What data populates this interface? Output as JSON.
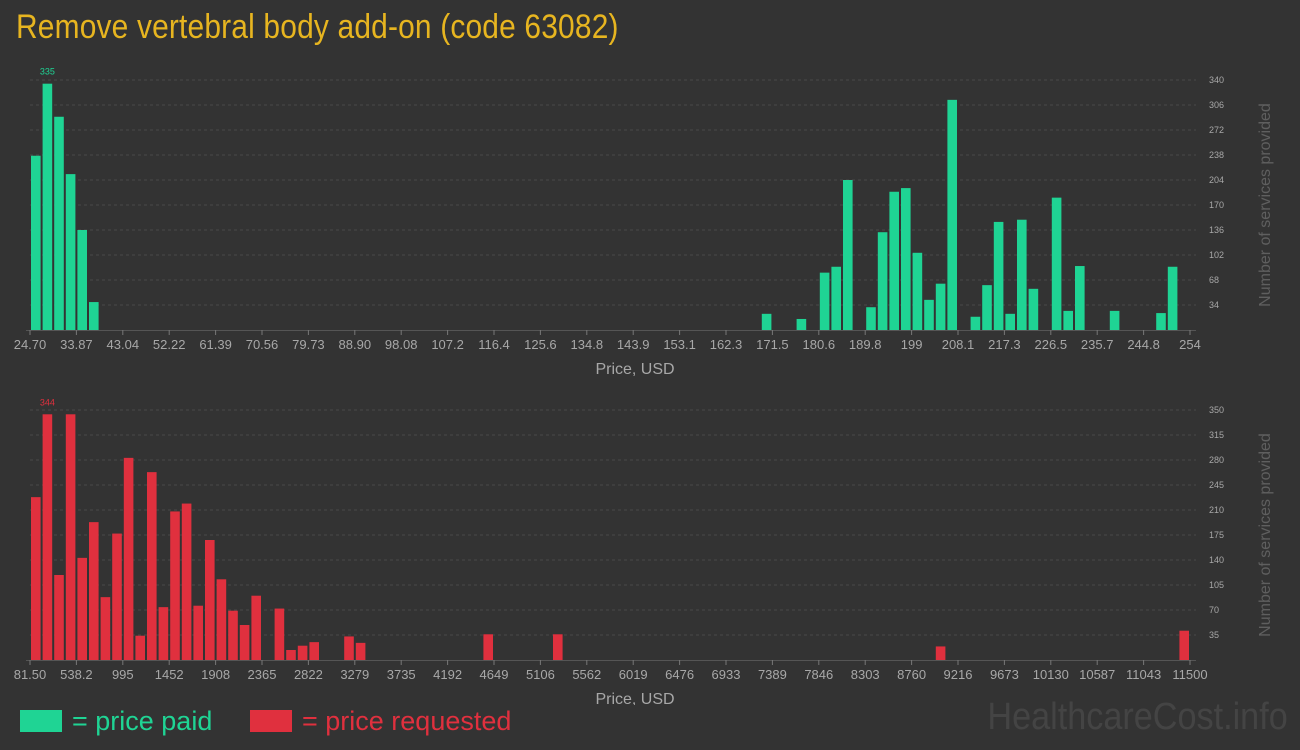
{
  "title": "Remove vertebral body add-on (code 63082)",
  "colors": {
    "background": "#333333",
    "paid": "#1fd494",
    "requested": "#e0303e",
    "title": "#e7b520",
    "grid": "#4a4a4a",
    "text": "#a8a8a8"
  },
  "legend": {
    "paid": "= price paid",
    "requested": "= price requested"
  },
  "watermark": "HealthcareCost.info",
  "chart_data": [
    {
      "type": "bar",
      "series_name": "price paid",
      "color": "#1fd494",
      "xlabel": "Price, USD",
      "ylabel": "Number of services provided",
      "x_tick_labels": [
        "24.70",
        "33.87",
        "43.04",
        "52.22",
        "61.39",
        "70.56",
        "79.73",
        "88.90",
        "98.08",
        "107.2",
        "116.4",
        "125.6",
        "134.8",
        "143.9",
        "153.1",
        "162.3",
        "171.5",
        "180.6",
        "189.8",
        "199",
        "208.1",
        "217.3",
        "226.5",
        "235.7",
        "244.8",
        "254"
      ],
      "y_ticks": [
        34,
        68,
        102,
        136,
        170,
        204,
        238,
        272,
        306,
        340
      ],
      "ylim": [
        0,
        340
      ],
      "max_label": "335",
      "bins": 100,
      "bars": [
        [
          0,
          237
        ],
        [
          1,
          335
        ],
        [
          2,
          290
        ],
        [
          3,
          212
        ],
        [
          4,
          136
        ],
        [
          5,
          38
        ],
        [
          63,
          22
        ],
        [
          66,
          15
        ],
        [
          68,
          78
        ],
        [
          69,
          86
        ],
        [
          70,
          204
        ],
        [
          72,
          31
        ],
        [
          73,
          133
        ],
        [
          74,
          188
        ],
        [
          75,
          193
        ],
        [
          76,
          105
        ],
        [
          77,
          41
        ],
        [
          78,
          63
        ],
        [
          79,
          313
        ],
        [
          81,
          18
        ],
        [
          82,
          61
        ],
        [
          83,
          147
        ],
        [
          84,
          22
        ],
        [
          85,
          150
        ],
        [
          86,
          56
        ],
        [
          88,
          180
        ],
        [
          89,
          26
        ],
        [
          90,
          87
        ],
        [
          93,
          26
        ],
        [
          97,
          23
        ],
        [
          98,
          86
        ]
      ]
    },
    {
      "type": "bar",
      "series_name": "price requested",
      "color": "#e0303e",
      "xlabel": "Price, USD",
      "ylabel": "Number of services provided",
      "x_tick_labels": [
        "81.50",
        "538.2",
        "995",
        "1452",
        "1908",
        "2365",
        "2822",
        "3279",
        "3735",
        "4192",
        "4649",
        "5106",
        "5562",
        "6019",
        "6476",
        "6933",
        "7389",
        "7846",
        "8303",
        "8760",
        "9216",
        "9673",
        "10130",
        "10587",
        "11043",
        "11500"
      ],
      "y_ticks": [
        35,
        70,
        105,
        140,
        175,
        210,
        245,
        280,
        315,
        350
      ],
      "ylim": [
        0,
        350
      ],
      "max_label": "344",
      "bins": 100,
      "bars": [
        [
          0,
          228
        ],
        [
          1,
          344
        ],
        [
          2,
          119
        ],
        [
          3,
          344
        ],
        [
          4,
          143
        ],
        [
          5,
          193
        ],
        [
          6,
          88
        ],
        [
          7,
          177
        ],
        [
          8,
          283
        ],
        [
          9,
          34
        ],
        [
          10,
          263
        ],
        [
          11,
          74
        ],
        [
          12,
          208
        ],
        [
          13,
          219
        ],
        [
          14,
          76
        ],
        [
          15,
          168
        ],
        [
          16,
          113
        ],
        [
          17,
          69
        ],
        [
          18,
          49
        ],
        [
          19,
          90
        ],
        [
          21,
          72
        ],
        [
          22,
          14
        ],
        [
          23,
          20
        ],
        [
          24,
          25
        ],
        [
          27,
          33
        ],
        [
          28,
          24
        ],
        [
          39,
          36
        ],
        [
          45,
          36
        ],
        [
          78,
          19
        ],
        [
          99,
          41
        ]
      ]
    }
  ]
}
